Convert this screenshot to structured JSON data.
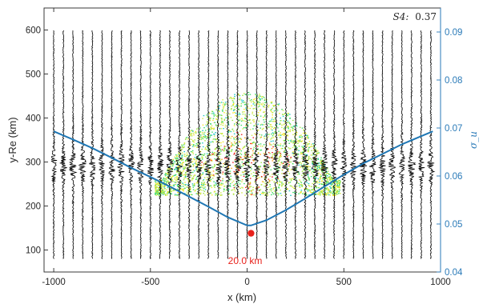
{
  "chart_data": {
    "type": "scatter",
    "xlabel": "x (km)",
    "ylabel": "y-Re (km)",
    "y2label": "σ_u",
    "xlim": [
      -1050,
      1000
    ],
    "ylim": [
      50,
      650
    ],
    "y2lim": [
      0.04,
      0.095
    ],
    "x_ticks": [
      -1000,
      -500,
      0,
      500,
      1000
    ],
    "x_tick_labels": [
      "-1000",
      "-500",
      "0",
      "500",
      "1000"
    ],
    "y_ticks": [
      100,
      200,
      300,
      400,
      500,
      600
    ],
    "y_tick_labels": [
      "100",
      "200",
      "300",
      "400",
      "500",
      "600"
    ],
    "y2_ticks": [
      0.04,
      0.05,
      0.06,
      0.07,
      0.08,
      0.09
    ],
    "y2_tick_labels": [
      "0.04",
      "0.05",
      "0.06",
      "0.07",
      "0.08",
      "0.09"
    ],
    "annotation_s4": {
      "label": "S4:",
      "value": "0.37"
    },
    "marker": {
      "x": 20,
      "y": 138,
      "label": "20.0 km",
      "color": "#e8211b"
    },
    "traces": {
      "x_start": -1000,
      "x_step": 50,
      "count": 40,
      "y_min": 80,
      "y_max": 600,
      "color": "#000000"
    },
    "sigma_curve": {
      "name": "σ_u",
      "color": "#1f77b4",
      "x": [
        -1000,
        -900,
        -800,
        -700,
        -600,
        -500,
        -400,
        -300,
        -200,
        -100,
        0,
        20,
        100,
        200,
        300,
        400,
        500,
        600,
        700,
        800,
        900,
        960
      ],
      "y": [
        0.0693,
        0.0676,
        0.0658,
        0.0638,
        0.0617,
        0.0598,
        0.0578,
        0.0557,
        0.0536,
        0.0514,
        0.0497,
        0.0497,
        0.0508,
        0.0529,
        0.0553,
        0.0578,
        0.0603,
        0.0626,
        0.0646,
        0.0666,
        0.0683,
        0.0693
      ]
    },
    "cloud": {
      "center_x": 0,
      "center_y": 300,
      "half_width_x": 480,
      "y_low": 225,
      "y_high": 460,
      "colors": [
        "#cfe84a",
        "#9ee44a",
        "#3fdc6a",
        "#f7e829",
        "#f9a61c",
        "#e8211b",
        "#20c7c7"
      ]
    }
  }
}
